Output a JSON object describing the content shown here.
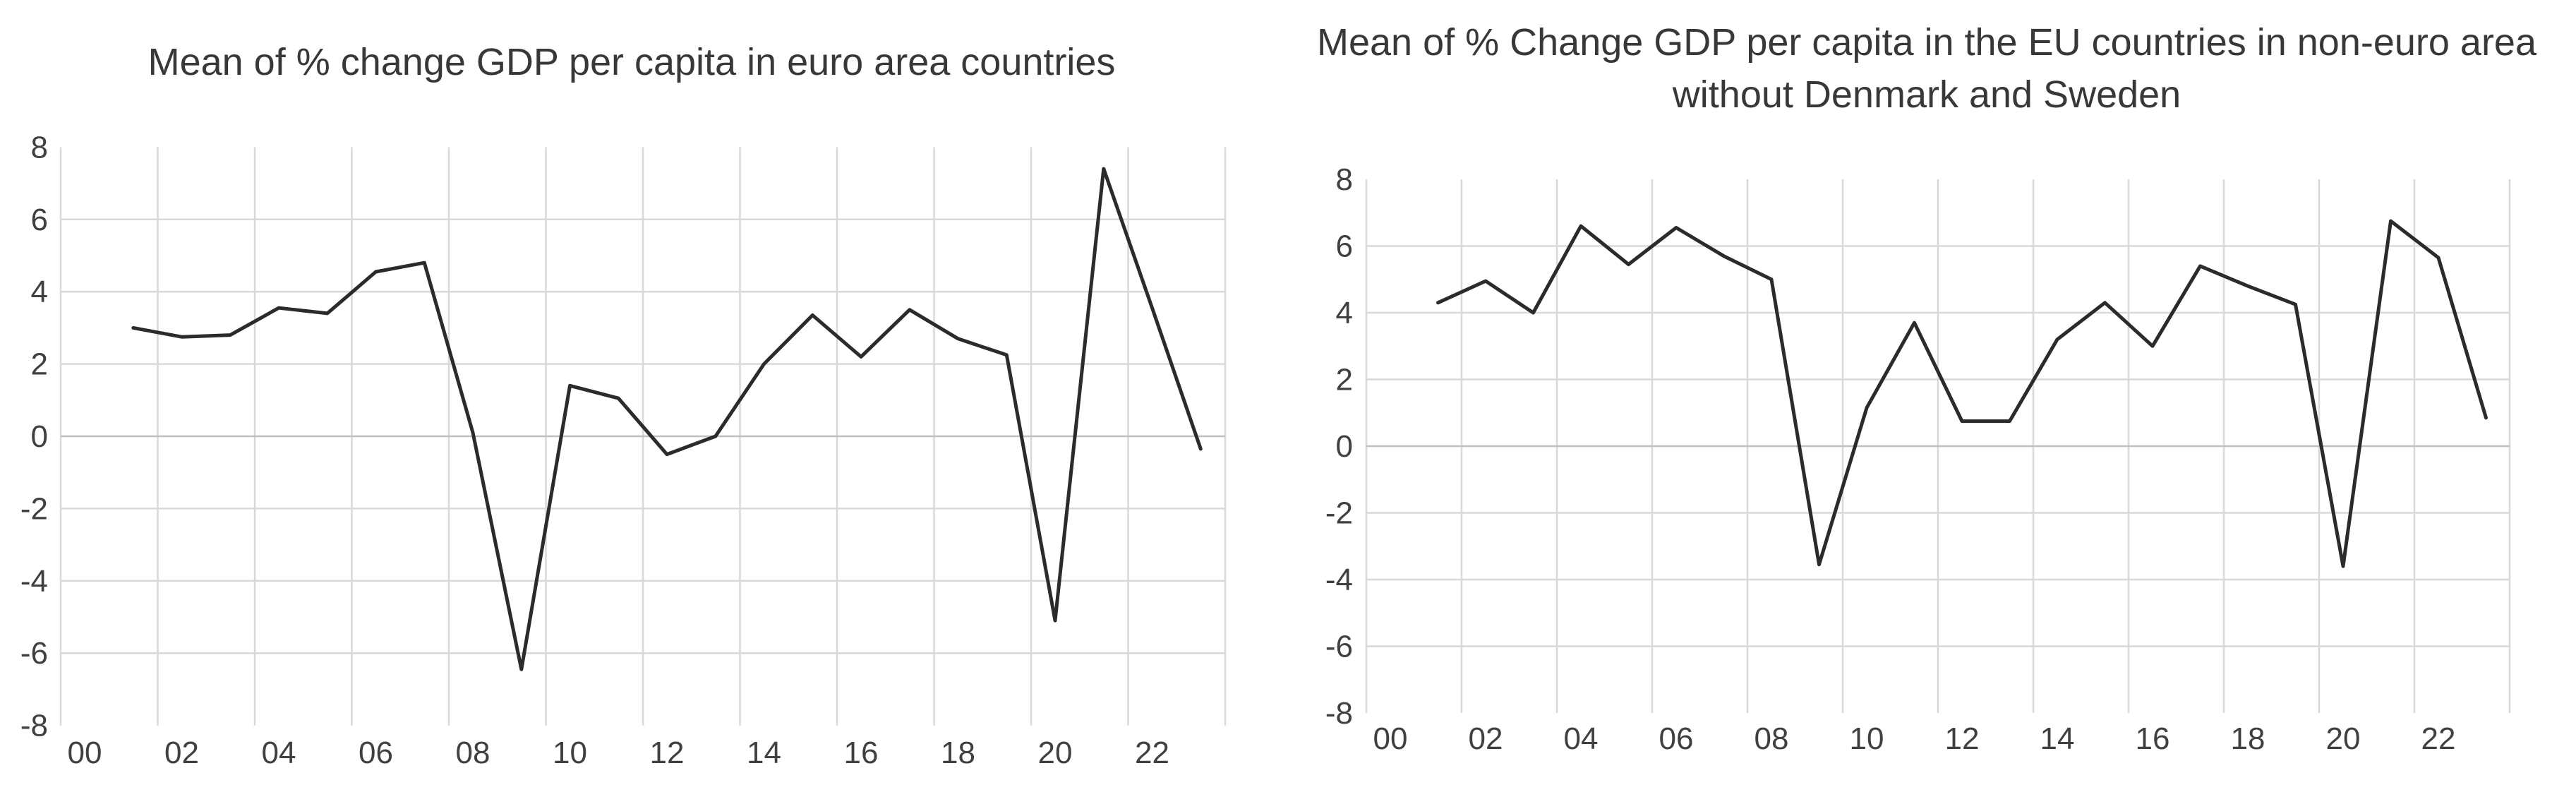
{
  "figure": {
    "background_color": "#ffffff",
    "text_color": "#404040",
    "title_color": "#383838"
  },
  "chart_data": [
    {
      "type": "line",
      "title": "Mean of % change GDP per capita in euro area countries",
      "title_lines": [
        "Mean of % change GDP per capita in euro area countries"
      ],
      "xlabel": "",
      "ylabel": "",
      "x": [
        2001,
        2002,
        2003,
        2004,
        2005,
        2006,
        2007,
        2008,
        2009,
        2010,
        2011,
        2012,
        2013,
        2014,
        2015,
        2016,
        2017,
        2018,
        2019,
        2020,
        2021,
        2022,
        2023
      ],
      "y": [
        3.0,
        2.75,
        2.8,
        3.55,
        3.4,
        4.55,
        4.8,
        0.1,
        -6.45,
        1.4,
        1.05,
        -0.5,
        0.0,
        2.0,
        3.35,
        2.2,
        3.5,
        2.7,
        2.25,
        -5.1,
        7.4,
        3.55,
        -0.35
      ],
      "ylim": [
        -8,
        8
      ],
      "y_ticks": [
        8,
        6,
        4,
        2,
        0,
        -2,
        -4,
        -6,
        -8
      ],
      "x_ticks": [
        2000,
        2002,
        2004,
        2006,
        2008,
        2010,
        2012,
        2014,
        2016,
        2018,
        2020,
        2022
      ],
      "x_tick_labels": [
        "00",
        "02",
        "04",
        "06",
        "08",
        "10",
        "12",
        "14",
        "16",
        "18",
        "20",
        "22"
      ],
      "grid": true,
      "legend": "none",
      "line_color": "#2b2b2b",
      "gridline_color": "#d9d9d9",
      "zero_line_color": "#bfbfbf"
    },
    {
      "type": "line",
      "title": "Mean of % Change GDP per capita in the EU countries in non-euro area without Denmark and Sweden",
      "title_lines": [
        "Mean of % Change GDP per capita in the EU countries in non-euro area",
        "without Denmark and Sweden"
      ],
      "xlabel": "",
      "ylabel": "",
      "x": [
        2001,
        2002,
        2003,
        2004,
        2005,
        2006,
        2007,
        2008,
        2009,
        2010,
        2011,
        2012,
        2013,
        2014,
        2015,
        2016,
        2017,
        2018,
        2019,
        2020,
        2021,
        2022,
        2023
      ],
      "y": [
        4.3,
        4.95,
        4.0,
        6.6,
        5.45,
        6.55,
        5.7,
        5.0,
        -3.55,
        1.15,
        3.7,
        0.75,
        0.75,
        3.2,
        4.3,
        3.0,
        5.4,
        4.8,
        4.25,
        -3.6,
        6.75,
        5.65,
        0.85
      ],
      "ylim": [
        -8,
        8
      ],
      "y_ticks": [
        8,
        6,
        4,
        2,
        0,
        -2,
        -4,
        -6,
        -8
      ],
      "x_ticks": [
        2000,
        2002,
        2004,
        2006,
        2008,
        2010,
        2012,
        2014,
        2016,
        2018,
        2020,
        2022
      ],
      "x_tick_labels": [
        "00",
        "02",
        "04",
        "06",
        "08",
        "10",
        "12",
        "14",
        "16",
        "18",
        "20",
        "22"
      ],
      "grid": true,
      "legend": "none",
      "line_color": "#2b2b2b",
      "gridline_color": "#d9d9d9",
      "zero_line_color": "#bfbfbf"
    }
  ]
}
